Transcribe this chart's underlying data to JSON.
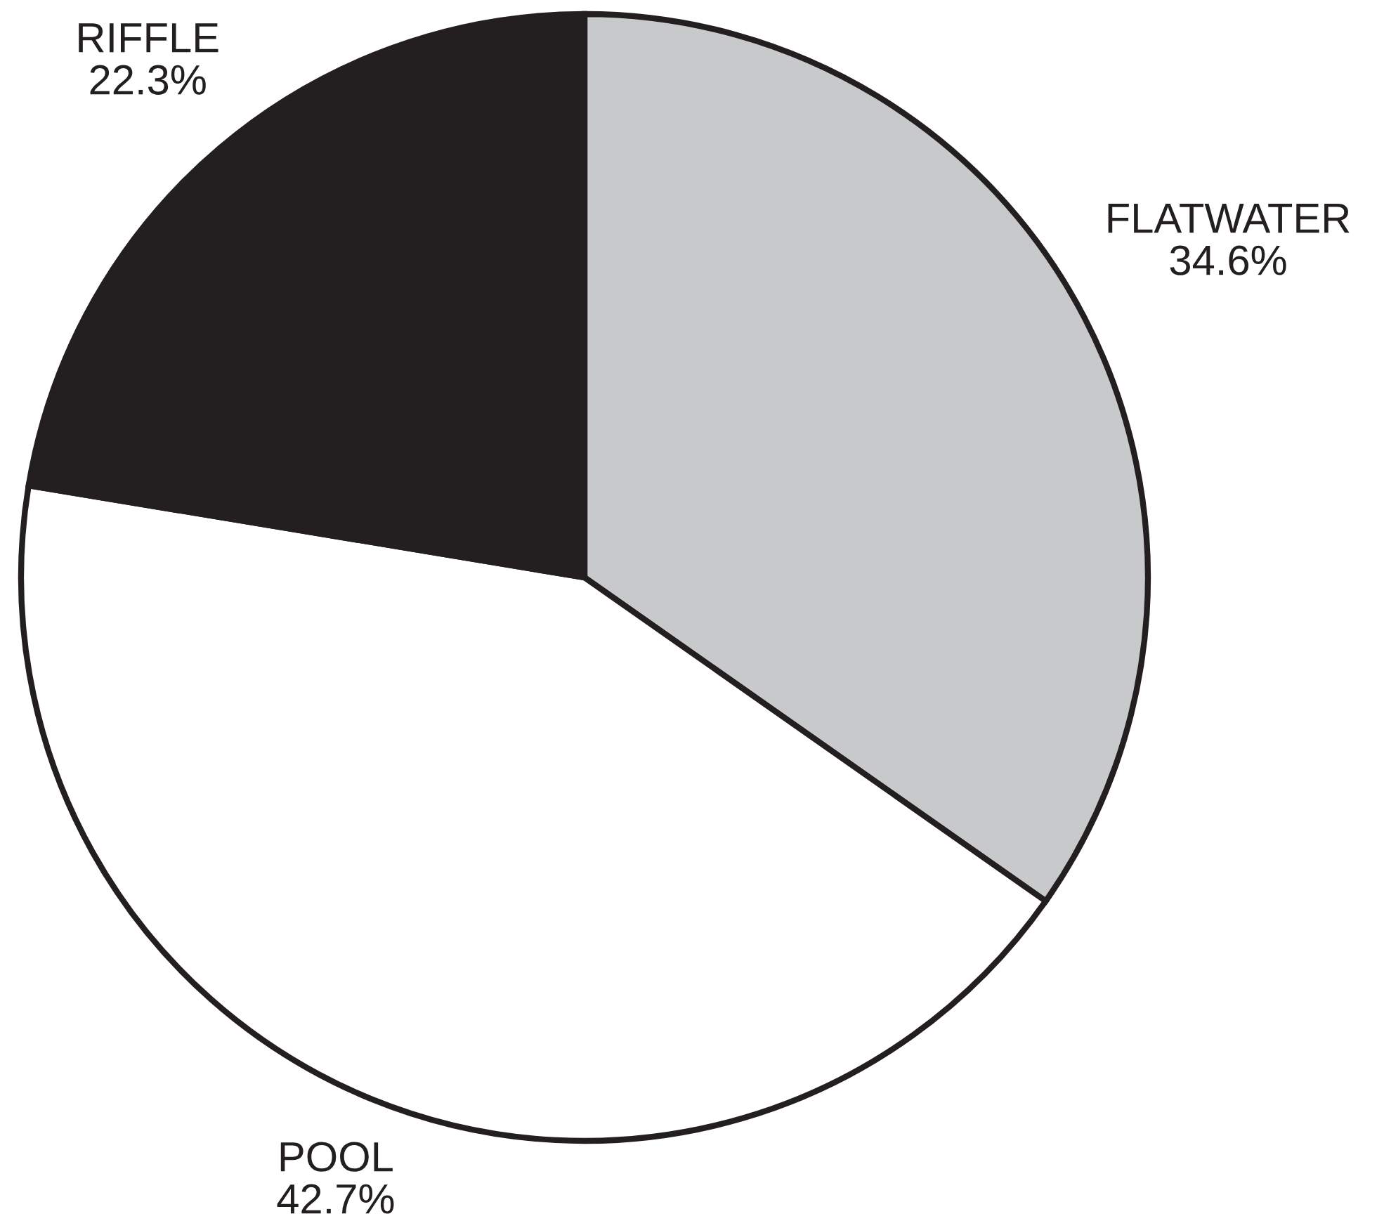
{
  "chart_data": {
    "type": "pie",
    "categories": [
      "FLATWATER",
      "POOL",
      "RIFFLE"
    ],
    "values": [
      34.6,
      42.7,
      22.3
    ],
    "value_labels": [
      "34.6%",
      "42.7%",
      "22.3%"
    ],
    "colors": [
      "#c8c9cb",
      "#ffffff",
      "#231f20"
    ]
  }
}
